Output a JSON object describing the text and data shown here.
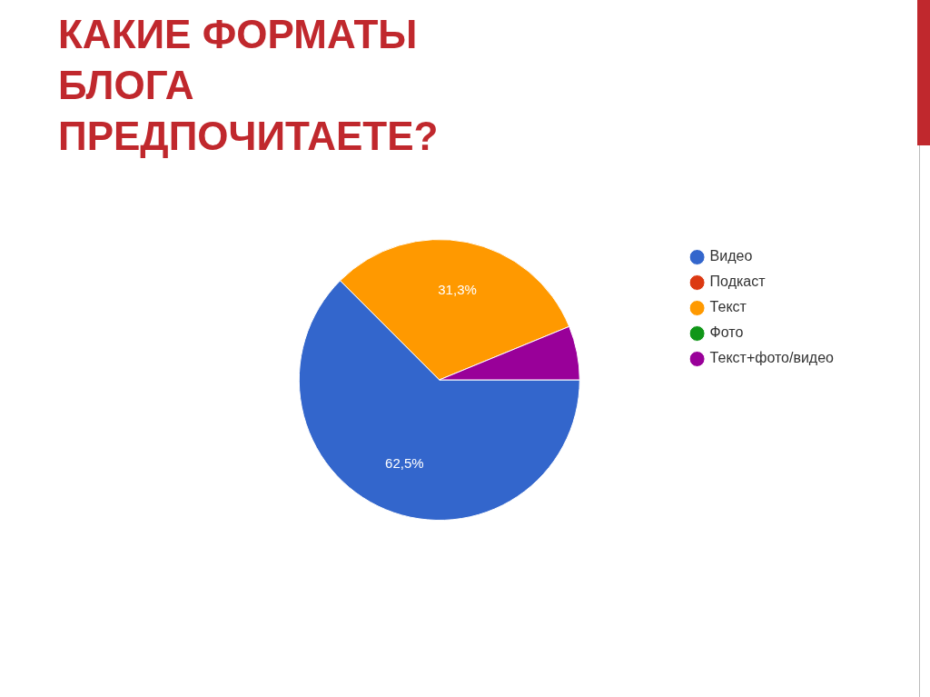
{
  "chart_data": {
    "type": "pie",
    "title": "КАКИЕ ФОРМАТЫ БЛОГА ПРЕДПОЧИТАЕТЕ?",
    "categories": [
      "Видео",
      "Подкаст",
      "Текст",
      "Фото",
      "Текст+фото/видео"
    ],
    "values": [
      62.5,
      0,
      31.3,
      0,
      6.2
    ],
    "value_labels": [
      "62,5%",
      null,
      "31,3%",
      null,
      null
    ],
    "colors": [
      "#3366cc",
      "#dc3912",
      "#ff9900",
      "#109618",
      "#990099"
    ],
    "legend": "right"
  }
}
